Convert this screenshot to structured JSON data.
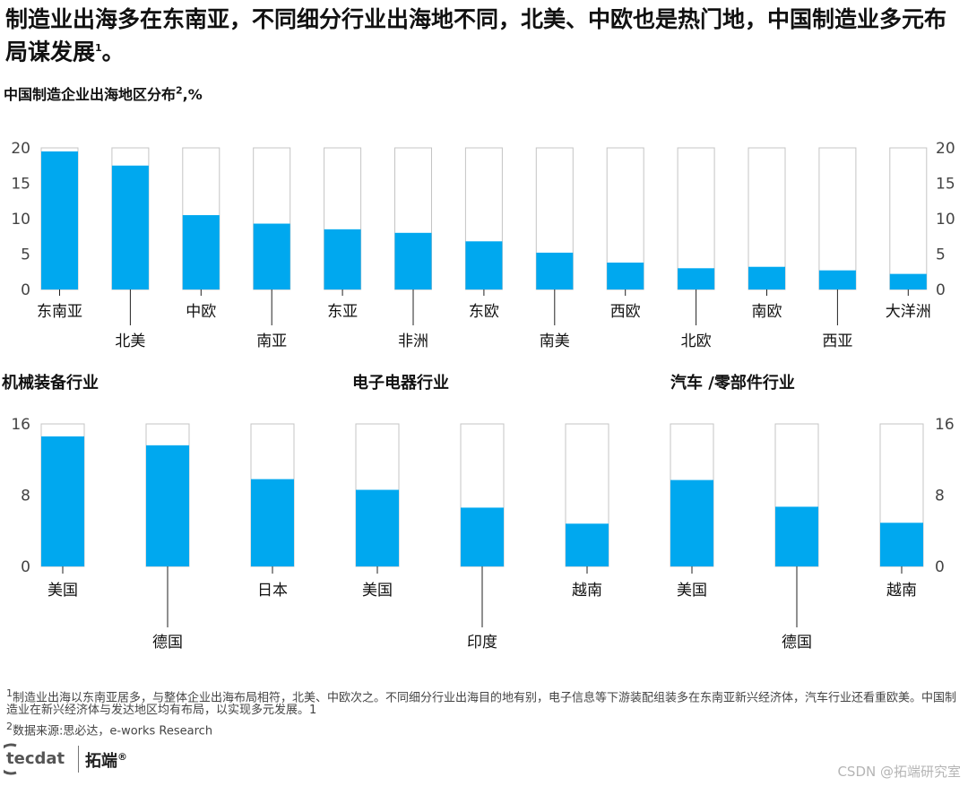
{
  "header": {
    "title": "制造业出海多在东南亚，不同细分行业出海地不同，北美、中欧也是热门地，中国制造业多元布局谋发展",
    "title_sup": "1",
    "title_end": "。"
  },
  "colors": {
    "bar": "#00a8ef",
    "frame": "#c4c4c4",
    "axis_text": "#444444",
    "label_text": "#111111"
  },
  "region_chart": {
    "heading": "中国制造企业出海地区分布",
    "heading_sup": "2",
    "heading_end": ",%"
  },
  "industry": {
    "machinery_title": "机械装备行业",
    "electronics_title": "电子电器行业",
    "auto_title": "汽车 /零部件行业"
  },
  "chart_data": [
    {
      "type": "bar",
      "title": "中国制造企业出海地区分布2,%",
      "categories": [
        "东南亚",
        "北美",
        "中欧",
        "南亚",
        "东亚",
        "非洲",
        "东欧",
        "南美",
        "西欧",
        "北欧",
        "南欧",
        "西亚",
        "大洋洲"
      ],
      "values": [
        19.5,
        17.5,
        10.5,
        9.3,
        8.5,
        8.0,
        6.8,
        5.2,
        3.8,
        3.0,
        3.2,
        2.7,
        2.2
      ],
      "ylim": [
        0,
        20
      ],
      "yticks": [
        0,
        5,
        10,
        15,
        20
      ],
      "xlabel": "",
      "ylabel": "%"
    },
    {
      "type": "bar",
      "title": "机械装备行业",
      "categories": [
        "美国",
        "德国",
        "日本"
      ],
      "values": [
        14.6,
        13.6,
        9.8
      ],
      "ylim": [
        0,
        16
      ],
      "yticks": [
        0,
        8,
        16
      ]
    },
    {
      "type": "bar",
      "title": "电子电器行业",
      "categories": [
        "美国",
        "印度",
        "越南"
      ],
      "values": [
        8.6,
        6.6,
        4.8
      ],
      "ylim": [
        0,
        16
      ],
      "yticks": [
        0,
        8,
        16
      ]
    },
    {
      "type": "bar",
      "title": "汽车 /零部件行业",
      "categories": [
        "美国",
        "德国",
        "越南"
      ],
      "values": [
        9.7,
        6.7,
        4.9
      ],
      "ylim": [
        0,
        16
      ],
      "yticks": [
        0,
        8,
        16
      ]
    }
  ],
  "footnotes": {
    "note1_sup": "1",
    "note1": "制造业出海以东南亚居多，与整体企业出海布局相符，北美、中欧次之。不同细分行业出海目的地有别，电子信息等下游装配组装多在东南亚新兴经济体，汽车行业还看重欧美。中国制造业在新兴经济体与发达地区均有布局，以实现多元发展。1",
    "note2_sup": "2",
    "note2": "数据来源:思必达，e-works Research"
  },
  "brand": {
    "logo": "tecdat",
    "name": "拓端",
    "reg": "®",
    "watermark": "CSDN @拓端研究室"
  }
}
